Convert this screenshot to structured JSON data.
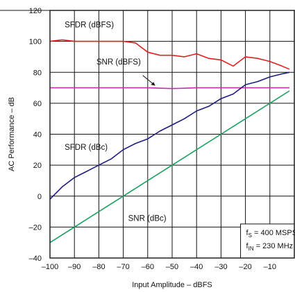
{
  "chart_data": {
    "type": "line",
    "xlabel": "Input Amplitude – dBFS",
    "ylabel": "AC Performance – dB",
    "xlim": [
      -100,
      0
    ],
    "ylim": [
      -40,
      120
    ],
    "grid": true,
    "x_ticks": [
      "–100",
      "–90",
      "–80",
      "–70",
      "–60",
      "–50",
      "–40",
      "–30",
      "–20",
      "–10"
    ],
    "y_ticks": [
      "–40",
      "–20",
      "0",
      "20",
      "40",
      "60",
      "80",
      "100",
      "120"
    ],
    "conditions": [
      {
        "symbol": "f",
        "sub": "S",
        "value": " = 400 MSPS"
      },
      {
        "symbol": "f",
        "sub": "IN",
        "value": " = 230 MHz"
      }
    ],
    "series": [
      {
        "name": "SFDR (dBFS)",
        "color": "#e02020",
        "x": [
          -100,
          -95,
          -90,
          -85,
          -80,
          -75,
          -70,
          -65,
          -60,
          -55,
          -50,
          -45,
          -40,
          -35,
          -30,
          -25,
          -20,
          -15,
          -10,
          -5,
          -2
        ],
        "y": [
          100,
          101,
          100,
          100,
          100,
          100,
          100,
          99,
          93,
          91,
          91,
          90,
          92,
          89,
          88,
          84,
          90,
          89,
          87,
          84,
          82
        ]
      },
      {
        "name": "SNR (dBFS)",
        "color": "#c030a8",
        "x": [
          -100,
          -90,
          -80,
          -70,
          -60,
          -50,
          -40,
          -30,
          -20,
          -10,
          -2
        ],
        "y": [
          70,
          70,
          70,
          70,
          70,
          69.5,
          70,
          70,
          70,
          70,
          70
        ]
      },
      {
        "name": "SFDR (dBc)",
        "color": "#1c1c80",
        "x": [
          -100,
          -95,
          -90,
          -85,
          -80,
          -75,
          -70,
          -65,
          -60,
          -55,
          -50,
          -45,
          -40,
          -35,
          -30,
          -25,
          -20,
          -15,
          -10,
          -5,
          -2
        ],
        "y": [
          -2,
          6,
          12,
          16,
          20,
          24,
          30,
          34,
          37,
          42,
          46,
          50,
          55,
          58,
          63,
          66,
          72,
          74,
          77,
          79,
          80
        ]
      },
      {
        "name": "SNR (dBc)",
        "color": "#1aa060",
        "x": [
          -100,
          -90,
          -80,
          -70,
          -60,
          -50,
          -40,
          -30,
          -20,
          -10,
          -2
        ],
        "y": [
          -30,
          -20,
          -10,
          0,
          10,
          20,
          30,
          40,
          50,
          60,
          68
        ]
      }
    ],
    "annotations": [
      {
        "text": "SFDR (dBFS)",
        "x": -94,
        "y": 109
      },
      {
        "text": "SNR (dBFS)",
        "x": -81,
        "y": 85
      },
      {
        "text": "SFDR (dBc)",
        "x": -94,
        "y": 30
      },
      {
        "text": "SNR (dBc)",
        "x": -68,
        "y": -16
      }
    ]
  }
}
